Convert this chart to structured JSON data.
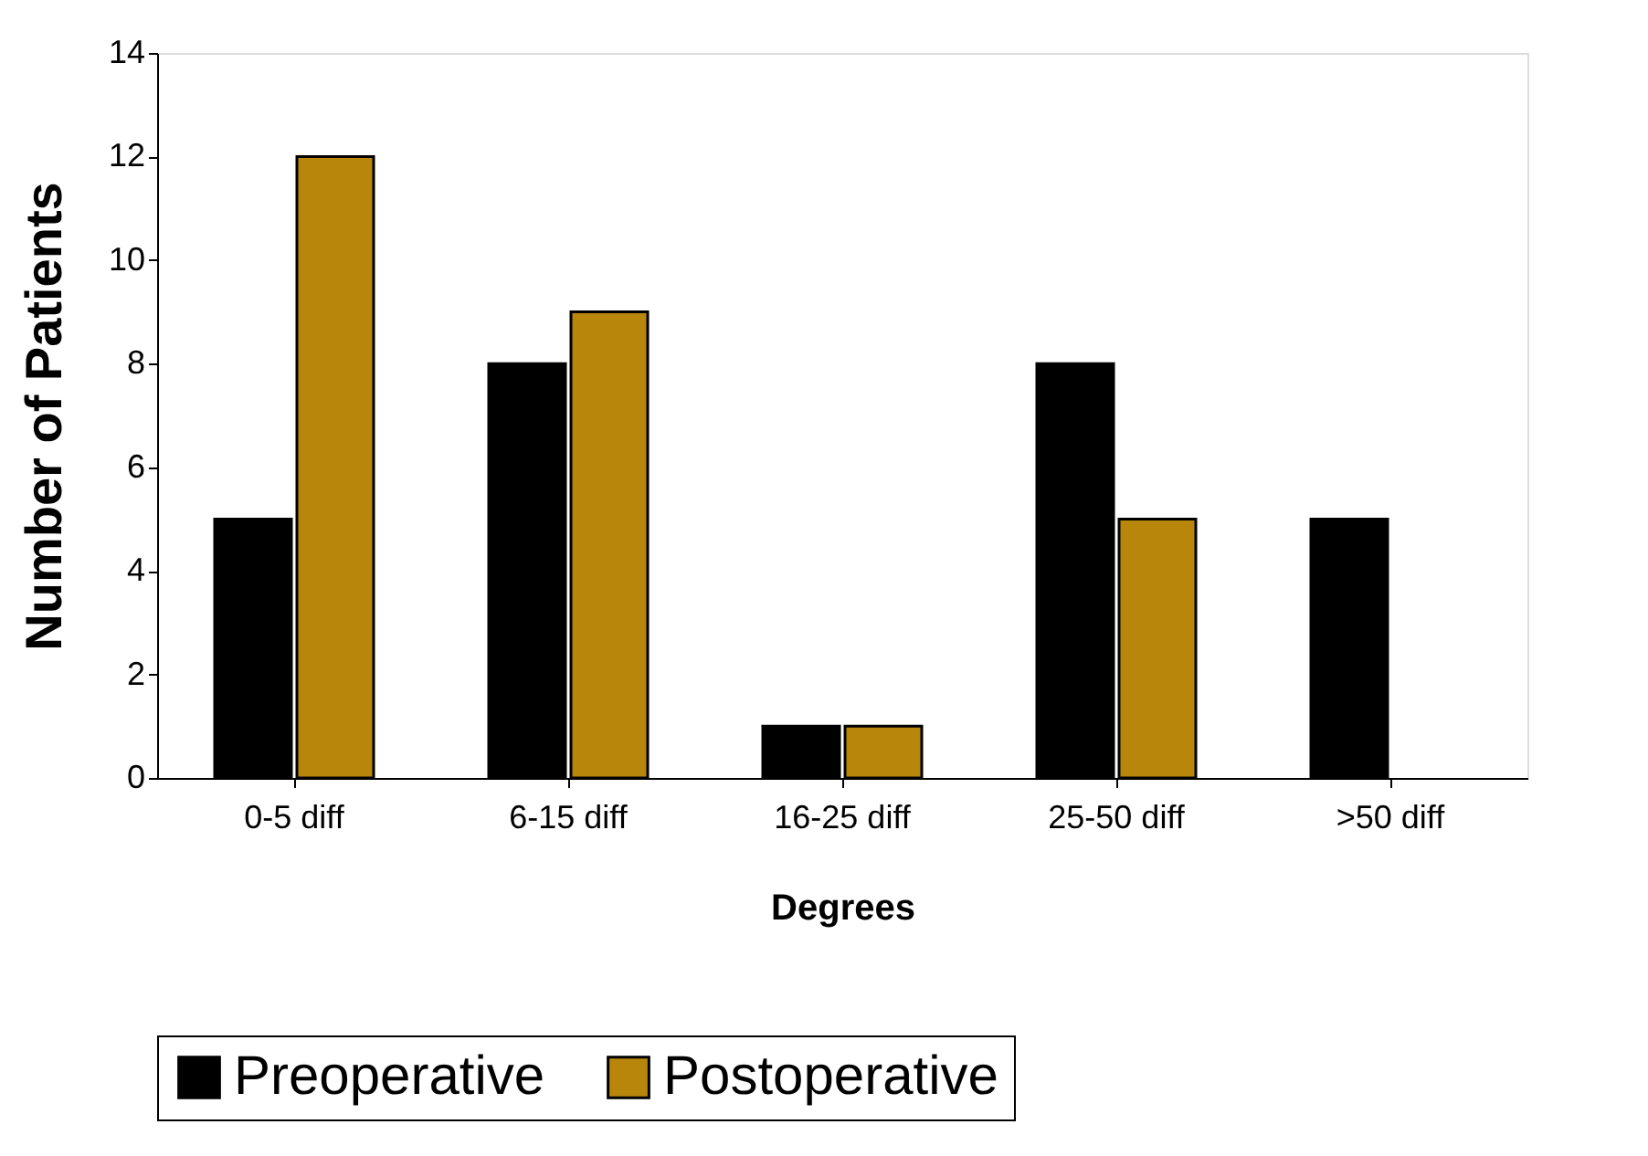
{
  "chart_data": {
    "type": "bar",
    "xlabel": "Degrees",
    "ylabel": "Number of Patients",
    "categories": [
      "0-5 diff",
      "6-15 diff",
      "16-25 diff",
      "25-50 diff",
      ">50 diff"
    ],
    "series": [
      {
        "name": "Preoperative",
        "color": "#000000",
        "values": [
          5,
          8,
          1,
          8,
          5
        ]
      },
      {
        "name": "Postoperative",
        "color": "#b8860b",
        "values": [
          12,
          9,
          1,
          5,
          null
        ]
      }
    ],
    "ylim": [
      0,
      14
    ],
    "yticks": [
      0,
      2,
      4,
      6,
      8,
      10,
      12,
      14
    ],
    "grid": false,
    "legend": "bottom"
  }
}
